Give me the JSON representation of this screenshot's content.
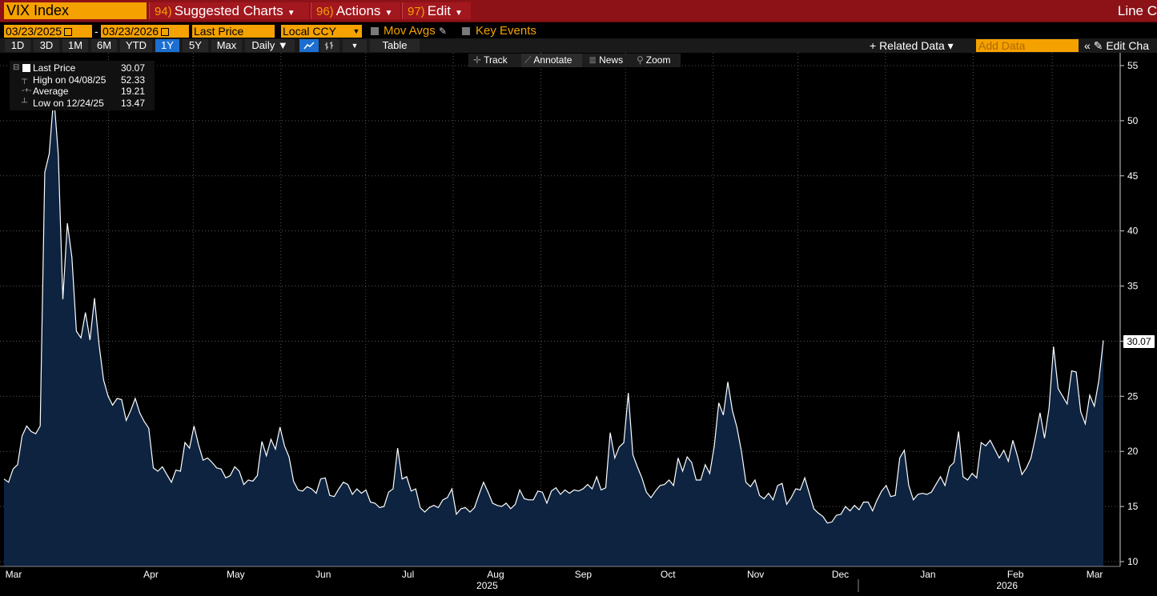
{
  "header": {
    "ticker": "VIX Index",
    "menus": [
      {
        "num": "94)",
        "label": "Suggested Charts"
      },
      {
        "num": "96)",
        "label": "Actions"
      },
      {
        "num": "97)",
        "label": "Edit"
      }
    ],
    "right_label": "Line C"
  },
  "controls": {
    "start_date": "03/23/2025",
    "end_date": "03/23/2026",
    "field": "Last Price",
    "currency": "Local CCY",
    "mov_avgs": "Mov Avgs",
    "key_events": "Key Events",
    "ranges": [
      "1D",
      "3D",
      "1M",
      "6M",
      "YTD",
      "1Y",
      "5Y",
      "Max"
    ],
    "active_range": "1Y",
    "frequency": "Daily ▼",
    "table": "Table",
    "related_data": "+ Related Data ▾",
    "add_data_placeholder": "Add Data",
    "edit_chart": "Edit Cha"
  },
  "tools": {
    "track": "Track",
    "annotate": "Annotate",
    "news": "News",
    "zoom": "Zoom"
  },
  "legend": {
    "last_label": "Last Price",
    "last_value": "30.07",
    "high_label": "High on 04/08/25",
    "high_value": "52.33",
    "avg_label": "Average",
    "avg_value": "19.21",
    "low_label": "Low on 12/24/25",
    "low_value": "13.47"
  },
  "price_tag": "30.07",
  "colors": {
    "accent": "#f5a100",
    "titlebar": "#8c1218",
    "area_fill": "#0d2340",
    "line": "#ffffff"
  },
  "chart_data": {
    "type": "area",
    "series_name": "Last Price",
    "x_start": "2025-03-21",
    "x_end": "2026-03-20",
    "month_labels": [
      "Mar",
      "Apr",
      "May",
      "Jun",
      "Jul",
      "Aug",
      "Sep",
      "Oct",
      "Nov",
      "Dec",
      "Jan",
      "Feb",
      "Mar"
    ],
    "month_dates": [
      "2025-03-01",
      "2025-04-01",
      "2025-05-01",
      "2025-06-01",
      "2025-07-01",
      "2025-08-01",
      "2025-09-01",
      "2025-10-01",
      "2025-11-01",
      "2025-12-01",
      "2026-01-01",
      "2026-02-01",
      "2026-03-01"
    ],
    "year_labels": [
      {
        "label": "2025",
        "date": "2025-08-01"
      },
      {
        "label": "2026",
        "date": "2026-02-01"
      }
    ],
    "y_ticks": [
      10,
      15,
      20,
      25,
      30,
      35,
      40,
      45,
      50,
      55
    ],
    "ylim": [
      9.5,
      55.5
    ],
    "grid": true,
    "values": [
      17.5,
      17.2,
      18.4,
      18.8,
      21.4,
      22.3,
      21.8,
      21.6,
      22.3,
      45.3,
      47.0,
      52.3,
      46.9,
      33.8,
      40.7,
      37.6,
      30.9,
      30.3,
      32.6,
      30.1,
      33.9,
      29.7,
      26.5,
      25.0,
      24.2,
      24.8,
      24.7,
      22.8,
      23.7,
      24.8,
      23.5,
      22.7,
      22.1,
      18.5,
      18.2,
      18.6,
      17.9,
      17.2,
      18.3,
      18.2,
      20.8,
      20.3,
      22.3,
      20.6,
      19.2,
      19.4,
      19.0,
      18.5,
      18.4,
      17.6,
      17.8,
      18.6,
      18.2,
      17.0,
      17.4,
      17.3,
      17.8,
      20.9,
      19.6,
      21.1,
      20.2,
      22.2,
      20.5,
      19.5,
      17.3,
      16.5,
      16.4,
      16.8,
      16.6,
      16.2,
      17.5,
      17.6,
      16.0,
      15.9,
      16.6,
      17.2,
      17.0,
      16.1,
      16.6,
      16.2,
      16.5,
      15.4,
      15.3,
      14.9,
      15.0,
      16.3,
      16.6,
      20.3,
      17.5,
      17.7,
      16.4,
      16.6,
      14.9,
      14.5,
      14.9,
      15.1,
      14.9,
      15.6,
      15.8,
      16.6,
      14.3,
      14.8,
      14.9,
      14.5,
      14.9,
      16.1,
      17.2,
      16.3,
      15.3,
      15.1,
      15.0,
      15.3,
      14.8,
      15.2,
      16.5,
      15.7,
      15.6,
      15.6,
      16.4,
      16.3,
      15.3,
      16.4,
      16.7,
      16.1,
      16.5,
      16.2,
      16.5,
      16.4,
      16.6,
      17.0,
      16.6,
      17.7,
      16.5,
      16.7,
      21.7,
      19.4,
      20.4,
      20.8,
      25.3,
      19.7,
      18.6,
      17.6,
      16.3,
      15.8,
      16.4,
      16.9,
      17.0,
      17.4,
      16.9,
      19.4,
      18.2,
      19.5,
      19.0,
      17.4,
      17.4,
      18.8,
      18.0,
      20.5,
      24.4,
      23.3,
      26.3,
      23.7,
      22.2,
      20.0,
      17.2,
      16.8,
      17.4,
      16.0,
      15.7,
      16.2,
      15.6,
      16.9,
      17.1,
      15.2,
      15.8,
      16.6,
      16.5,
      17.6,
      16.2,
      14.8,
      14.4,
      14.1,
      13.5,
      13.6,
      14.2,
      14.3,
      15.0,
      14.6,
      15.1,
      14.7,
      15.4,
      15.4,
      14.6,
      15.6,
      16.4,
      16.9,
      15.9,
      16.0,
      19.4,
      20.1,
      16.9,
      15.6,
      16.1,
      16.2,
      16.1,
      16.3,
      17.0,
      17.7,
      16.9,
      18.6,
      19.0,
      21.8,
      17.7,
      17.4,
      18.0,
      17.6,
      20.8,
      20.5,
      21.0,
      20.2,
      19.4,
      20.1,
      19.1,
      21.0,
      19.6,
      17.9,
      18.5,
      19.4,
      21.3,
      23.5,
      21.2,
      23.9,
      29.5,
      25.7,
      25.0,
      24.3,
      27.3,
      27.2,
      23.6,
      22.5,
      25.1,
      24.1,
      26.4,
      30.07
    ]
  }
}
